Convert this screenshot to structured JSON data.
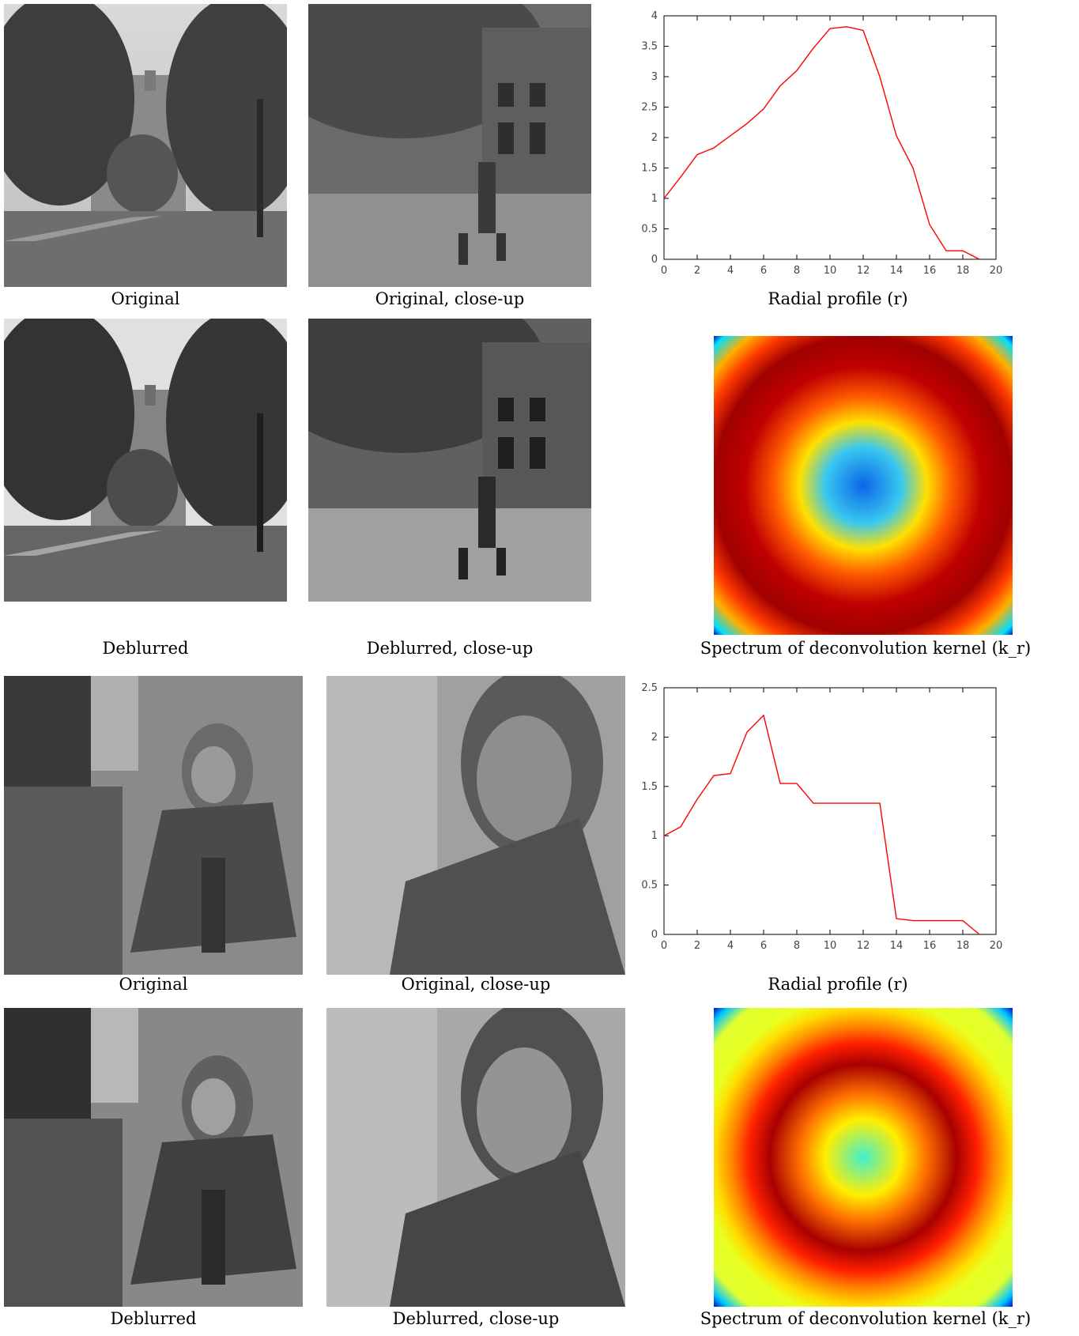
{
  "captions": {
    "r1": [
      "Original",
      "Original, close-up",
      "Radial profile (r)"
    ],
    "r2": [
      "Deblurred",
      "Deblurred, close-up",
      "Spectrum of deconvolution kernel (k_r)"
    ],
    "r3": [
      "Original",
      "Original, close-up",
      "Radial profile (r)"
    ],
    "r4": [
      "Deblurred",
      "Deblurred, close-up",
      "Spectrum of deconvolution kernel (k_r)"
    ]
  },
  "chart_data": [
    {
      "type": "line",
      "xlabel": "Radial profile (r)",
      "x": [
        0,
        1,
        2,
        3,
        4,
        5,
        6,
        7,
        8,
        9,
        10,
        11,
        12,
        13,
        14,
        15,
        16,
        17,
        18,
        19
      ],
      "series": [
        {
          "color": "#ff0000",
          "values": [
            1.0,
            1.35,
            1.72,
            1.83,
            2.03,
            2.23,
            2.47,
            2.85,
            3.1,
            3.47,
            3.79,
            3.82,
            3.76,
            3.0,
            2.03,
            1.5,
            0.57,
            0.14,
            0.14,
            0.0
          ]
        }
      ],
      "xlim": [
        0,
        20
      ],
      "ylim": [
        0,
        4
      ],
      "xticks": [
        "0",
        "2",
        "4",
        "6",
        "8",
        "10",
        "12",
        "14",
        "16",
        "18",
        "20"
      ],
      "yticks": [
        "0",
        "0.5",
        "1",
        "1.5",
        "2",
        "2.5",
        "3",
        "3.5",
        "4"
      ],
      "grid": false
    },
    {
      "type": "line",
      "xlabel": "Radial profile (r)",
      "x": [
        0,
        1,
        2,
        3,
        4,
        5,
        6,
        7,
        8,
        9,
        10,
        11,
        12,
        13,
        14,
        15,
        16,
        17,
        18,
        19
      ],
      "series": [
        {
          "color": "#ff0000",
          "values": [
            1.0,
            1.09,
            1.37,
            1.61,
            1.63,
            2.05,
            2.22,
            1.53,
            1.53,
            1.33,
            1.33,
            1.33,
            1.33,
            1.33,
            0.16,
            0.14,
            0.14,
            0.14,
            0.14,
            0.0
          ]
        }
      ],
      "xlim": [
        0,
        20
      ],
      "ylim": [
        0,
        2.5
      ],
      "xticks": [
        "0",
        "2",
        "4",
        "6",
        "8",
        "10",
        "12",
        "14",
        "16",
        "18",
        "20"
      ],
      "yticks": [
        "0",
        "0.5",
        "1",
        "1.5",
        "2",
        "2.5"
      ],
      "grid": false
    }
  ],
  "spectra": [
    {
      "stops": [
        [
          "#0b66e8",
          0
        ],
        [
          "#39c8f0",
          0.18
        ],
        [
          "#ffe000",
          0.3
        ],
        [
          "#ff5a00",
          0.42
        ],
        [
          "#c00000",
          0.56
        ],
        [
          "#a00000",
          0.7
        ],
        [
          "#ff3a00",
          0.8
        ],
        [
          "#ffb000",
          0.88
        ],
        [
          "#00e0ff",
          0.96
        ],
        [
          "#0000c0",
          1
        ]
      ]
    },
    {
      "stops": [
        [
          "#41f0d0",
          0
        ],
        [
          "#ffee00",
          0.18
        ],
        [
          "#ff7000",
          0.3
        ],
        [
          "#a80000",
          0.44
        ],
        [
          "#ff2000",
          0.54
        ],
        [
          "#ff8800",
          0.62
        ],
        [
          "#ffdd00",
          0.7
        ],
        [
          "#e8ff20",
          0.76
        ],
        [
          "#e0ff30",
          0.88
        ],
        [
          "#00c8ff",
          0.95
        ],
        [
          "#0000c8",
          1
        ]
      ]
    }
  ]
}
